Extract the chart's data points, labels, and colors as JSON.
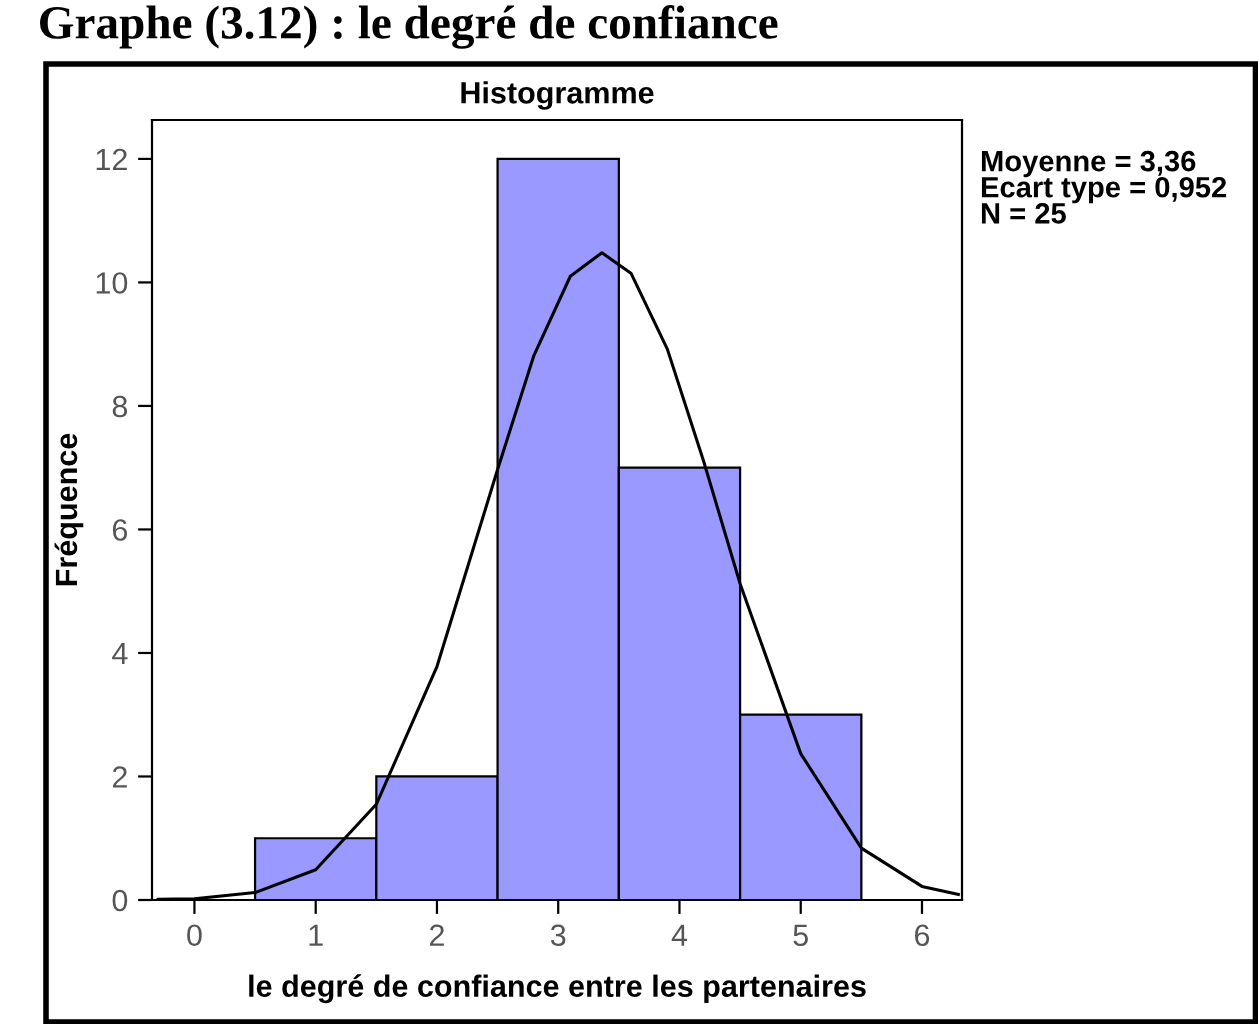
{
  "chart_data": {
    "type": "histogram",
    "title": "Graphe (3.12) : le degré de confiance",
    "subtitle": "Histogramme",
    "xlabel": "le degré de confiance entre les partenaires",
    "ylabel": "Fréquence",
    "bins": [
      0.5,
      1.5,
      2.5,
      3.5,
      4.5,
      5.5
    ],
    "values": [
      1,
      2,
      12,
      7,
      3
    ],
    "color": "#9999ff",
    "series": [
      {
        "type": "line",
        "color": "#000000",
        "x": [
          -0.3,
          0,
          0.5,
          1.0,
          1.5,
          2.0,
          2.5,
          2.8,
          3.1,
          3.36,
          3.6,
          3.9,
          4.2,
          4.5,
          5.0,
          5.5,
          6.0,
          6.3
        ],
        "values": [
          0.01,
          0.02,
          0.12,
          0.49,
          1.55,
          3.78,
          6.97,
          8.82,
          10.1,
          10.48,
          10.15,
          8.92,
          7.1,
          5.12,
          2.37,
          0.84,
          0.22,
          0.09
        ]
      }
    ],
    "xlim": [
      -0.35,
      6.33
    ],
    "ylim": [
      0,
      12.63
    ],
    "xticks": [
      0,
      1,
      2,
      3,
      4,
      5,
      6
    ],
    "yticks": [
      0,
      2,
      4,
      6,
      8,
      10,
      12
    ],
    "grid": false,
    "legend": false,
    "annotations": [
      "Moyenne = 3,36\nEcart type = 0,952\nN = 25"
    ]
  }
}
